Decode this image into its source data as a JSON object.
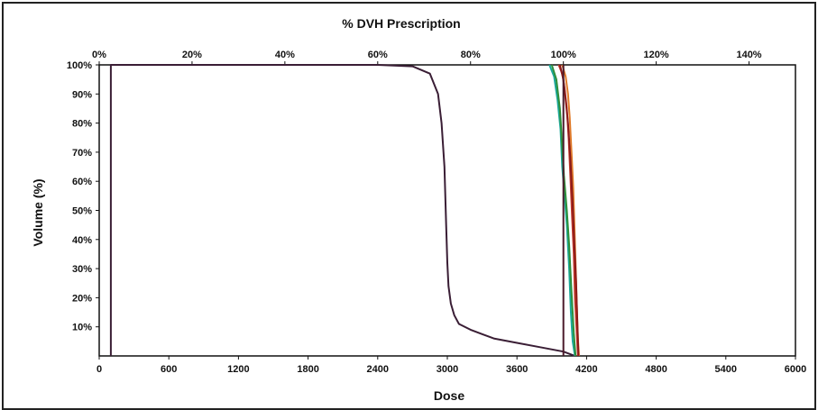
{
  "chart_data": {
    "type": "line",
    "title": "",
    "top_axis_title": "% DVH Prescription",
    "xlabel": "Dose",
    "ylabel": "Volume (%)",
    "xlim": [
      0,
      6000
    ],
    "ylim": [
      0,
      100
    ],
    "x_ticks": [
      "0",
      "600",
      "1200",
      "1800",
      "2400",
      "3000",
      "3600",
      "4200",
      "4800",
      "5400",
      "6000"
    ],
    "y_ticks": [
      "10%",
      "20%",
      "30%",
      "40%",
      "50%",
      "60%",
      "70%",
      "80%",
      "90%",
      "100%"
    ],
    "top_ticks": [
      "0%",
      "20%",
      "40%",
      "60%",
      "80%",
      "100%",
      "120%",
      "140%"
    ],
    "top_axis_max_percent": 150,
    "grid": false,
    "legend": "none",
    "series": [
      {
        "color": "#3a1e35",
        "x": [
          100,
          100,
          2400,
          2700,
          2850,
          2920,
          2950,
          2975,
          2990,
          3000,
          3010,
          3030,
          3060,
          3100,
          3200,
          3300,
          3400,
          3600,
          3800,
          4000,
          4100
        ],
        "y": [
          0,
          100,
          100,
          99.5,
          97,
          90,
          80,
          65,
          45,
          32,
          24,
          18,
          14,
          11,
          9,
          7.5,
          6,
          4.5,
          3,
          1.5,
          0
        ]
      },
      {
        "color": "#1aa89a",
        "x": [
          3880,
          3920,
          3950,
          3975,
          3990,
          4010,
          4030,
          4050,
          4065,
          4080,
          4100
        ],
        "y": [
          100,
          96,
          88,
          78,
          65,
          55,
          45,
          30,
          15,
          5,
          0
        ]
      },
      {
        "color": "#2f8f3a",
        "x": [
          3900,
          3940,
          3970,
          3990,
          4005,
          4030,
          4050,
          4070,
          4090,
          4105
        ],
        "y": [
          100,
          95,
          85,
          72,
          62,
          50,
          38,
          22,
          8,
          0
        ]
      },
      {
        "color": "#c0392b",
        "x": [
          3960,
          3990,
          4010,
          4030,
          4045,
          4060,
          4075,
          4090,
          4100,
          4115,
          4125
        ],
        "y": [
          100,
          97,
          92,
          85,
          75,
          62,
          48,
          35,
          20,
          8,
          0
        ]
      },
      {
        "color": "#e07b2a",
        "x": [
          3990,
          4020,
          4040,
          4055,
          4070,
          4085,
          4095,
          4105,
          4115,
          4125,
          4135
        ],
        "y": [
          100,
          96,
          90,
          82,
          70,
          58,
          45,
          32,
          18,
          6,
          0
        ]
      },
      {
        "color": "#8b1a1a",
        "x": [
          3970,
          4000,
          4020,
          4040,
          4060,
          4080,
          4095,
          4110,
          4120,
          4130
        ],
        "y": [
          100,
          95,
          88,
          80,
          68,
          52,
          38,
          25,
          12,
          0
        ]
      },
      {
        "color": "#4a1a2a",
        "x": [
          4000,
          4000
        ],
        "y": [
          100,
          0
        ]
      }
    ]
  }
}
